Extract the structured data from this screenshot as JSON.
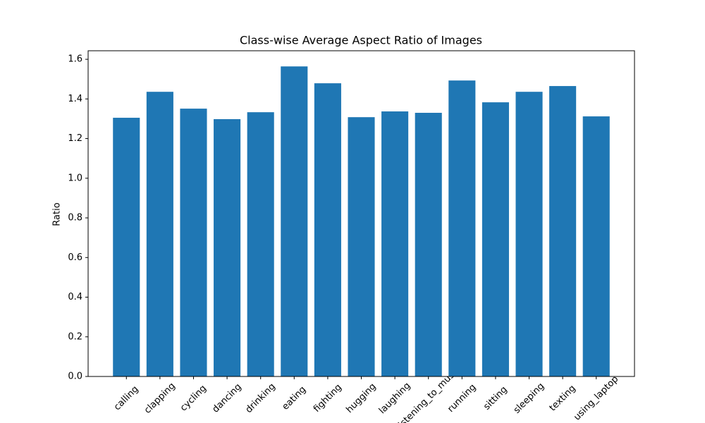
{
  "chart_data": {
    "type": "bar",
    "title": "Class-wise Average Aspect Ratio of Images",
    "y_label": "Ratio",
    "categories": [
      "calling",
      "clapping",
      "cycling",
      "dancing",
      "drinking",
      "eating",
      "fighting",
      "hugging",
      "laughing",
      "listening_to_music",
      "running",
      "sitting",
      "sleeping",
      "texting",
      "using_laptop"
    ],
    "values": [
      1.305,
      1.436,
      1.351,
      1.298,
      1.333,
      1.564,
      1.479,
      1.308,
      1.337,
      1.33,
      1.493,
      1.383,
      1.436,
      1.465,
      1.312
    ],
    "color": "#1f77b4",
    "ylim": [
      0,
      1.643
    ],
    "yticks": [
      {
        "value": 0,
        "label": "0.0"
      },
      {
        "value": 0.2,
        "label": "0.2"
      },
      {
        "value": 0.4,
        "label": "0.4"
      },
      {
        "value": 0.6,
        "label": "0.6"
      },
      {
        "value": 0.8,
        "label": "0.8"
      },
      {
        "value": 1,
        "label": "1.0"
      },
      {
        "value": 1.2,
        "label": "1.2"
      },
      {
        "value": 1.4,
        "label": "1.4"
      },
      {
        "value": 1.6,
        "label": "1.6"
      }
    ],
    "grid": false
  }
}
